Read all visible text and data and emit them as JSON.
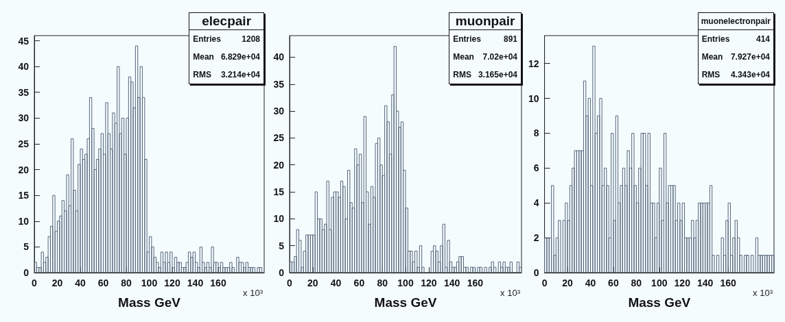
{
  "chart_data": [
    {
      "type": "histogram",
      "title": "elecpair",
      "xlabel": "Mass GeV",
      "color": "#56657a",
      "annotations": [
        "Entries 1208",
        "Mean 6.829e+04",
        "RMS 3.214e+04",
        "x 10³"
      ],
      "bins": [
        0,
        2,
        4,
        6,
        8,
        10,
        12,
        14,
        16,
        18,
        20,
        22,
        24,
        26,
        28,
        30,
        32,
        34,
        36,
        38,
        40,
        42,
        44,
        46,
        48,
        50,
        52,
        54,
        56,
        58,
        60,
        62,
        64,
        66,
        68,
        70,
        72,
        74,
        76,
        78,
        80,
        82,
        84,
        86,
        88,
        90,
        92,
        94,
        96,
        98,
        100,
        102,
        104,
        106,
        108,
        110,
        112,
        114,
        116,
        118,
        120,
        122,
        124,
        126,
        128,
        130,
        132,
        134,
        136,
        138,
        140,
        142,
        144,
        146,
        148,
        150,
        152,
        154,
        156,
        158,
        160,
        162,
        164,
        166,
        168,
        170,
        172,
        174,
        176,
        178,
        180,
        182,
        184,
        186,
        188,
        190,
        192,
        194,
        196,
        198,
        200
      ],
      "values": [
        2,
        1,
        1,
        4,
        2,
        3,
        7,
        9,
        15,
        8,
        10,
        11,
        14,
        12,
        19,
        13,
        26,
        16,
        12,
        21,
        24,
        22,
        23,
        26,
        34,
        28,
        20,
        22,
        24,
        27,
        23,
        33,
        27,
        24,
        31,
        29,
        40,
        27,
        30,
        23,
        30,
        38,
        37,
        32,
        44,
        34,
        40,
        34,
        22,
        4,
        7,
        5,
        3,
        2,
        1,
        4,
        2,
        4,
        2,
        4,
        1,
        3,
        2,
        2,
        1,
        1,
        2,
        4,
        3,
        4,
        2,
        1,
        5,
        2,
        1,
        2,
        1,
        5,
        2,
        2,
        1,
        2,
        1,
        1,
        1,
        2,
        1,
        0,
        3,
        2,
        2,
        1,
        2,
        1,
        1,
        1,
        0,
        1,
        1,
        0
      ],
      "xlim": [
        0,
        200
      ],
      "xticks": [
        0,
        20,
        40,
        60,
        80,
        100,
        120,
        140,
        160
      ],
      "ylim": [
        0,
        46
      ],
      "yticks": [
        0,
        5,
        10,
        15,
        20,
        25,
        30,
        35,
        40,
        45
      ],
      "grid": false
    },
    {
      "type": "histogram",
      "title": "muonpair",
      "xlabel": "Mass GeV",
      "color": "#56657a",
      "annotations": [
        "Entries 891",
        "Mean 7.02e+04",
        "RMS 3.165e+04",
        "x 10³"
      ],
      "bins": [
        0,
        2,
        4,
        6,
        8,
        10,
        12,
        14,
        16,
        18,
        20,
        22,
        24,
        26,
        28,
        30,
        32,
        34,
        36,
        38,
        40,
        42,
        44,
        46,
        48,
        50,
        52,
        54,
        56,
        58,
        60,
        62,
        64,
        66,
        68,
        70,
        72,
        74,
        76,
        78,
        80,
        82,
        84,
        86,
        88,
        90,
        92,
        94,
        96,
        98,
        100,
        102,
        104,
        106,
        108,
        110,
        112,
        114,
        116,
        118,
        120,
        122,
        124,
        126,
        128,
        130,
        132,
        134,
        136,
        138,
        140,
        142,
        144,
        146,
        148,
        150,
        152,
        154,
        156,
        158,
        160,
        162,
        164,
        166,
        168,
        170,
        172,
        174,
        176,
        178,
        180,
        182,
        184,
        186,
        188,
        190,
        192,
        194,
        196,
        198,
        200
      ],
      "values": [
        2,
        2,
        3,
        8,
        6,
        1,
        4,
        7,
        7,
        7,
        7,
        15,
        10,
        10,
        8,
        9,
        17,
        8,
        14,
        15,
        15,
        14,
        17,
        16,
        10,
        19,
        13,
        12,
        23,
        20,
        22,
        13,
        29,
        15,
        9,
        16,
        14,
        24,
        25,
        20,
        18,
        31,
        28,
        22,
        33,
        42,
        30,
        27,
        28,
        19,
        12,
        4,
        4,
        2,
        4,
        1,
        5,
        1,
        0,
        0,
        0,
        4,
        5,
        4,
        2,
        5,
        9,
        1,
        6,
        2,
        1,
        1,
        2,
        3,
        3,
        1,
        1,
        0,
        1,
        1,
        0,
        1,
        1,
        0,
        1,
        0,
        1,
        2,
        1,
        0,
        2,
        1,
        2,
        1,
        1,
        2,
        0,
        0,
        2,
        1
      ],
      "xlim": [
        0,
        200
      ],
      "xticks": [
        0,
        20,
        40,
        60,
        80,
        100,
        120,
        140,
        160
      ],
      "ylim": [
        0,
        44
      ],
      "yticks": [
        0,
        5,
        10,
        15,
        20,
        25,
        30,
        35,
        40
      ],
      "grid": false
    },
    {
      "type": "histogram",
      "title": "muonelectronpair",
      "xlabel": "Mass GeV",
      "color": "#56657a",
      "annotations": [
        "Entries 414",
        "Mean 7.927e+04",
        "RMS 4.343e+04",
        "x 10³"
      ],
      "bins": [
        0,
        2,
        4,
        6,
        8,
        10,
        12,
        14,
        16,
        18,
        20,
        22,
        24,
        26,
        28,
        30,
        32,
        34,
        36,
        38,
        40,
        42,
        44,
        46,
        48,
        50,
        52,
        54,
        56,
        58,
        60,
        62,
        64,
        66,
        68,
        70,
        72,
        74,
        76,
        78,
        80,
        82,
        84,
        86,
        88,
        90,
        92,
        94,
        96,
        98,
        100,
        102,
        104,
        106,
        108,
        110,
        112,
        114,
        116,
        118,
        120,
        122,
        124,
        126,
        128,
        130,
        132,
        134,
        136,
        138,
        140,
        142,
        144,
        146,
        148,
        150,
        152,
        154,
        156,
        158,
        160,
        162,
        164,
        166,
        168,
        170,
        172,
        174,
        176,
        178,
        180,
        182,
        184,
        186,
        188,
        190,
        192,
        194,
        196,
        198,
        200
      ],
      "values": [
        2,
        2,
        2,
        5,
        1,
        2,
        3,
        0,
        3,
        4,
        3,
        5,
        6,
        7,
        7,
        7,
        7,
        11,
        9,
        10,
        5,
        13,
        8,
        9,
        10,
        5,
        6,
        5,
        2,
        8,
        3,
        9,
        4,
        5,
        6,
        5,
        7,
        6,
        8,
        5,
        4,
        6,
        8,
        8,
        5,
        8,
        4,
        4,
        2,
        4,
        6,
        3,
        8,
        4,
        5,
        5,
        5,
        3,
        4,
        3,
        4,
        2,
        2,
        2,
        3,
        2,
        3,
        4,
        4,
        4,
        4,
        4,
        5,
        1,
        0,
        1,
        0,
        2,
        1,
        3,
        4,
        1,
        2,
        3,
        2,
        1,
        0,
        1,
        1,
        0,
        1,
        0,
        2,
        1,
        1,
        1,
        1,
        1,
        1,
        1
      ],
      "xlim": [
        0,
        200
      ],
      "xticks": [
        0,
        20,
        40,
        60,
        80,
        100,
        120,
        140,
        160
      ],
      "ylim": [
        0,
        13.6
      ],
      "yticks": [
        0,
        2,
        4,
        6,
        8,
        10,
        12
      ],
      "grid": false
    }
  ]
}
